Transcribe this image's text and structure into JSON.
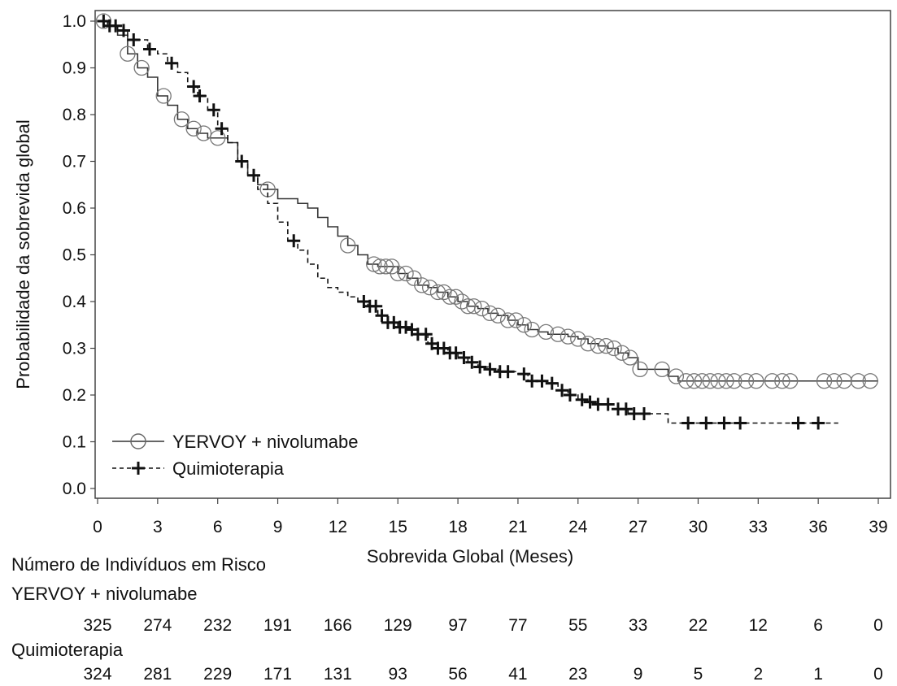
{
  "chart_data": {
    "type": "line",
    "subtype": "kaplan-meier",
    "xlabel": "Sobrevida Global (Meses)",
    "ylabel": "Probabilidade da sobrevida global",
    "xlim": [
      0,
      39
    ],
    "ylim": [
      0,
      1.0
    ],
    "x_ticks": [
      0,
      3,
      6,
      9,
      12,
      15,
      18,
      21,
      24,
      27,
      30,
      33,
      36,
      39
    ],
    "y_ticks": [
      0.0,
      0.1,
      0.2,
      0.3,
      0.4,
      0.5,
      0.6,
      0.7,
      0.8,
      0.9,
      1.0
    ],
    "y_tick_labels": [
      "0.0",
      "0.1",
      "0.2",
      "0.3",
      "0.4",
      "0.5",
      "0.6",
      "0.7",
      "0.8",
      "0.9",
      "1.0"
    ],
    "grid": false,
    "legend_position": "bottom-left",
    "series": [
      {
        "name": "YERVOY + nivolumabe",
        "line_style": "solid",
        "marker": "circle",
        "color": "#333333",
        "steps": [
          [
            0,
            1.0
          ],
          [
            0.5,
            0.99
          ],
          [
            1.0,
            0.97
          ],
          [
            1.5,
            0.93
          ],
          [
            2.0,
            0.9
          ],
          [
            2.5,
            0.88
          ],
          [
            3.0,
            0.84
          ],
          [
            3.5,
            0.82
          ],
          [
            4.0,
            0.79
          ],
          [
            4.5,
            0.77
          ],
          [
            5.0,
            0.76
          ],
          [
            5.5,
            0.75
          ],
          [
            6.0,
            0.75
          ],
          [
            6.5,
            0.74
          ],
          [
            7.0,
            0.7
          ],
          [
            7.5,
            0.67
          ],
          [
            8.0,
            0.65
          ],
          [
            8.5,
            0.64
          ],
          [
            9.0,
            0.62
          ],
          [
            10.0,
            0.61
          ],
          [
            10.5,
            0.6
          ],
          [
            11.0,
            0.58
          ],
          [
            11.5,
            0.56
          ],
          [
            12.0,
            0.54
          ],
          [
            12.5,
            0.52
          ],
          [
            13.0,
            0.5
          ],
          [
            13.5,
            0.48
          ],
          [
            14.0,
            0.475
          ],
          [
            15.0,
            0.46
          ],
          [
            15.5,
            0.45
          ],
          [
            16.0,
            0.435
          ],
          [
            16.5,
            0.43
          ],
          [
            17.0,
            0.42
          ],
          [
            17.5,
            0.41
          ],
          [
            18.0,
            0.4
          ],
          [
            18.5,
            0.39
          ],
          [
            19.0,
            0.385
          ],
          [
            19.5,
            0.375
          ],
          [
            20.0,
            0.37
          ],
          [
            20.5,
            0.36
          ],
          [
            21.0,
            0.35
          ],
          [
            21.5,
            0.34
          ],
          [
            22.0,
            0.335
          ],
          [
            22.5,
            0.33
          ],
          [
            23.0,
            0.33
          ],
          [
            23.5,
            0.325
          ],
          [
            24.0,
            0.32
          ],
          [
            24.5,
            0.31
          ],
          [
            25.0,
            0.305
          ],
          [
            25.5,
            0.3
          ],
          [
            26.0,
            0.29
          ],
          [
            26.5,
            0.28
          ],
          [
            27.0,
            0.255
          ],
          [
            28.0,
            0.255
          ],
          [
            28.5,
            0.24
          ],
          [
            29.0,
            0.23
          ],
          [
            39.0,
            0.23
          ]
        ],
        "censor_times": [
          0.3,
          1.5,
          2.2,
          3.3,
          4.2,
          4.8,
          5.3,
          6.0,
          8.5,
          12.5,
          13.8,
          14.1,
          14.4,
          14.7,
          15.0,
          15.4,
          15.8,
          16.2,
          16.6,
          17.0,
          17.3,
          17.6,
          17.9,
          18.2,
          18.5,
          18.8,
          19.2,
          19.6,
          20.0,
          20.5,
          20.9,
          21.3,
          21.7,
          22.4,
          23.0,
          23.5,
          24.0,
          24.5,
          25.0,
          25.4,
          25.8,
          26.2,
          26.6,
          27.1,
          28.2,
          28.9,
          29.4,
          29.8,
          30.2,
          30.6,
          31.0,
          31.4,
          31.8,
          32.4,
          32.9,
          33.7,
          34.2,
          34.6,
          36.3,
          36.8,
          37.3,
          38.0,
          38.6
        ]
      },
      {
        "name": "Quimioterapia",
        "line_style": "dashed",
        "marker": "plus",
        "color": "#111111",
        "steps": [
          [
            0,
            1.0
          ],
          [
            0.5,
            0.99
          ],
          [
            1.0,
            0.98
          ],
          [
            1.5,
            0.96
          ],
          [
            2.5,
            0.94
          ],
          [
            3.0,
            0.93
          ],
          [
            3.5,
            0.91
          ],
          [
            4.0,
            0.89
          ],
          [
            4.5,
            0.86
          ],
          [
            5.0,
            0.84
          ],
          [
            5.5,
            0.81
          ],
          [
            6.0,
            0.77
          ],
          [
            6.5,
            0.74
          ],
          [
            7.0,
            0.7
          ],
          [
            7.5,
            0.67
          ],
          [
            8.0,
            0.64
          ],
          [
            8.5,
            0.61
          ],
          [
            9.0,
            0.57
          ],
          [
            9.5,
            0.53
          ],
          [
            10.0,
            0.51
          ],
          [
            10.5,
            0.48
          ],
          [
            11.0,
            0.45
          ],
          [
            11.5,
            0.43
          ],
          [
            12.0,
            0.42
          ],
          [
            12.5,
            0.41
          ],
          [
            13.0,
            0.4
          ],
          [
            13.5,
            0.39
          ],
          [
            14.0,
            0.37
          ],
          [
            14.5,
            0.355
          ],
          [
            15.0,
            0.345
          ],
          [
            15.5,
            0.34
          ],
          [
            16.0,
            0.33
          ],
          [
            16.5,
            0.31
          ],
          [
            17.0,
            0.3
          ],
          [
            17.5,
            0.29
          ],
          [
            18.0,
            0.28
          ],
          [
            18.5,
            0.27
          ],
          [
            19.0,
            0.26
          ],
          [
            19.5,
            0.255
          ],
          [
            20.0,
            0.25
          ],
          [
            21.0,
            0.245
          ],
          [
            21.5,
            0.23
          ],
          [
            22.5,
            0.225
          ],
          [
            23.0,
            0.21
          ],
          [
            23.5,
            0.2
          ],
          [
            24.0,
            0.19
          ],
          [
            24.5,
            0.185
          ],
          [
            25.0,
            0.18
          ],
          [
            25.5,
            0.18
          ],
          [
            26.0,
            0.17
          ],
          [
            26.5,
            0.16
          ],
          [
            28.0,
            0.16
          ],
          [
            28.5,
            0.14
          ],
          [
            37.0,
            0.14
          ]
        ],
        "censor_times": [
          0.3,
          0.6,
          0.9,
          1.3,
          1.8,
          2.6,
          3.7,
          4.8,
          5.1,
          5.8,
          6.2,
          7.2,
          7.8,
          9.8,
          13.3,
          13.6,
          13.9,
          14.2,
          14.5,
          14.8,
          15.1,
          15.4,
          15.7,
          16.0,
          16.4,
          16.7,
          17.0,
          17.3,
          17.6,
          17.9,
          18.3,
          18.7,
          19.1,
          19.6,
          20.1,
          20.5,
          21.3,
          21.7,
          22.2,
          22.7,
          23.2,
          23.6,
          24.2,
          24.6,
          25.0,
          25.5,
          26.0,
          26.4,
          26.8,
          27.3,
          29.5,
          30.4,
          31.3,
          32.1,
          35.0,
          36.0
        ]
      }
    ]
  },
  "risk_table": {
    "title": "Número de Indivíduos em Risco",
    "times": [
      0,
      3,
      6,
      9,
      12,
      15,
      18,
      21,
      24,
      27,
      30,
      33,
      36,
      39
    ],
    "groups": [
      {
        "name": "YERVOY + nivolumabe",
        "counts": [
          "325",
          "274",
          "232",
          "191",
          "166",
          "129",
          "97",
          "77",
          "55",
          "33",
          "22",
          "12",
          "6",
          "0"
        ]
      },
      {
        "name": "Quimioterapia",
        "counts": [
          "324",
          "281",
          "229",
          "171",
          "131",
          "93",
          "56",
          "41",
          "23",
          "9",
          "5",
          "2",
          "1",
          "0"
        ]
      }
    ]
  }
}
